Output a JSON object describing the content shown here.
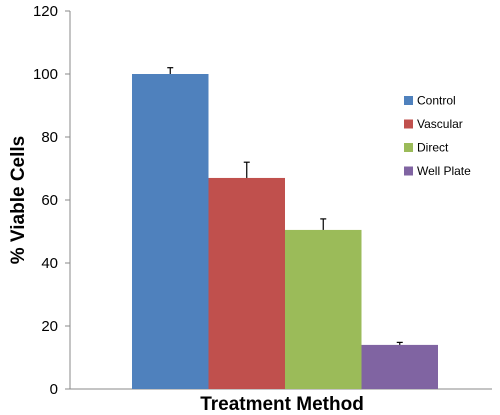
{
  "chart_data": {
    "type": "bar",
    "title": "",
    "xlabel": "Treatment Method",
    "ylabel": "% Viable Cells",
    "ylim": [
      0,
      120
    ],
    "yticks": [
      0,
      20,
      40,
      60,
      80,
      100,
      120
    ],
    "grid": false,
    "legend_position": "right",
    "series": [
      {
        "name": "Control",
        "value": 100,
        "error": 2,
        "color": "#4f81bd"
      },
      {
        "name": "Vascular",
        "value": 67,
        "error": 5,
        "color": "#c0504d"
      },
      {
        "name": "Direct",
        "value": 50.5,
        "error": 3.5,
        "color": "#9bbb59"
      },
      {
        "name": "Well Plate",
        "value": 14,
        "error": 0.8,
        "color": "#8064a2"
      }
    ]
  }
}
